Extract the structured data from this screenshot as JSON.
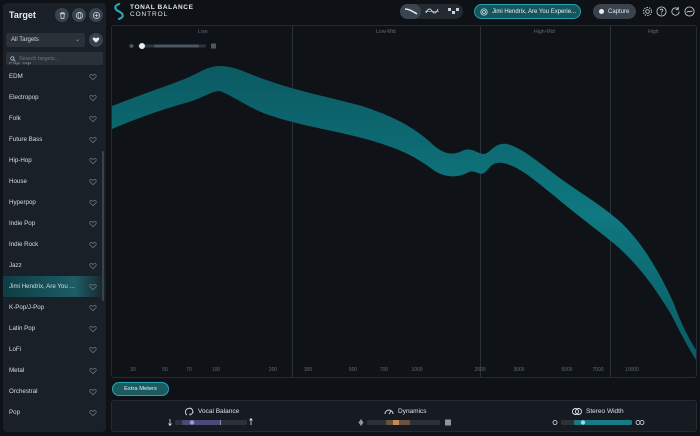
{
  "sidebar": {
    "title": "Target",
    "filter": {
      "selected": "All Targets"
    },
    "search": {
      "placeholder": "Search targets..."
    },
    "partial_item": "Pop Top",
    "items": [
      {
        "label": "EDM",
        "selected": false
      },
      {
        "label": "Electropop",
        "selected": false
      },
      {
        "label": "Folk",
        "selected": false
      },
      {
        "label": "Future Bass",
        "selected": false
      },
      {
        "label": "Hip-Hop",
        "selected": false
      },
      {
        "label": "House",
        "selected": false
      },
      {
        "label": "Hyperpop",
        "selected": false
      },
      {
        "label": "Indie Pop",
        "selected": false
      },
      {
        "label": "Indie Rock",
        "selected": false
      },
      {
        "label": "Jazz",
        "selected": false
      },
      {
        "label": "Jimi Hendrix, Are You ...",
        "selected": true
      },
      {
        "label": "K-Pop/J-Pop",
        "selected": false
      },
      {
        "label": "Latin Pop",
        "selected": false
      },
      {
        "label": "LoFi",
        "selected": false
      },
      {
        "label": "Metal",
        "selected": false
      },
      {
        "label": "Orchestral",
        "selected": false
      },
      {
        "label": "Pop",
        "selected": false
      }
    ]
  },
  "header": {
    "brand_line1": "TONAL BALANCE",
    "brand_line2": "CONTROL",
    "target_name": "Jimi Hendrix, Are You Experie...",
    "capture_label": "Capture"
  },
  "graph": {
    "bands": [
      "Low",
      "Low-Mid",
      "High-Mid",
      "High"
    ],
    "freq_ticks": [
      "30",
      "50",
      "70",
      "100",
      "200",
      "300",
      "500",
      "700",
      "1000",
      "2000",
      "3000",
      "5000",
      "7000",
      "10000"
    ]
  },
  "bottom": {
    "extra_meters_label": "Extra Meters",
    "vocal_balance_label": "Vocal Balance",
    "dynamics_label": "Dynamics",
    "stereo_width_label": "Stereo Width"
  },
  "colors": {
    "accent": "#27a0ad",
    "curve_fill": "#0d6a72",
    "background": "#0e1116",
    "panel": "#1a2027"
  }
}
